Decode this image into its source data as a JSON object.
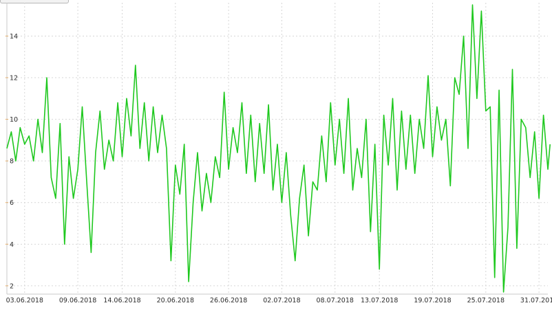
{
  "chart_data": {
    "type": "line",
    "title": "",
    "xlabel": "",
    "ylabel": "",
    "grid": true,
    "xlim": [
      "2018-06-01",
      "2018-08-01"
    ],
    "ylim": [
      1.6,
      15.6
    ],
    "y_ticks": [
      2,
      4,
      6,
      8,
      10,
      12,
      14
    ],
    "x_ticks": [
      "03.06.2018",
      "09.06.2018",
      "14.06.2018",
      "20.06.2018",
      "26.06.2018",
      "02.07.2018",
      "08.07.2018",
      "13.07.2018",
      "19.07.2018",
      "25.07.2018",
      "31.07.2018"
    ],
    "series": [
      {
        "color": "#1ec81e",
        "points": [
          [
            "2018-06-01",
            8.6
          ],
          [
            "2018-06-01T12:00",
            9.4
          ],
          [
            "2018-06-02",
            8.0
          ],
          [
            "2018-06-02T12:00",
            9.6
          ],
          [
            "2018-06-03",
            8.8
          ],
          [
            "2018-06-03T12:00",
            9.2
          ],
          [
            "2018-06-04",
            8.0
          ],
          [
            "2018-06-04T12:00",
            10.0
          ],
          [
            "2018-06-05",
            8.4
          ],
          [
            "2018-06-05T12:00",
            12.0
          ],
          [
            "2018-06-06",
            7.2
          ],
          [
            "2018-06-06T12:00",
            6.2
          ],
          [
            "2018-06-07",
            9.8
          ],
          [
            "2018-06-07T12:00",
            4.0
          ],
          [
            "2018-06-08",
            8.2
          ],
          [
            "2018-06-08T12:00",
            6.2
          ],
          [
            "2018-06-09",
            7.6
          ],
          [
            "2018-06-09T12:00",
            10.6
          ],
          [
            "2018-06-10",
            7.0
          ],
          [
            "2018-06-10T12:00",
            3.6
          ],
          [
            "2018-06-11",
            8.4
          ],
          [
            "2018-06-11T12:00",
            10.4
          ],
          [
            "2018-06-12",
            7.6
          ],
          [
            "2018-06-12T12:00",
            9.0
          ],
          [
            "2018-06-13",
            8.0
          ],
          [
            "2018-06-13T12:00",
            10.8
          ],
          [
            "2018-06-14",
            8.2
          ],
          [
            "2018-06-14T12:00",
            11.0
          ],
          [
            "2018-06-15",
            9.2
          ],
          [
            "2018-06-15T12:00",
            12.6
          ],
          [
            "2018-06-16",
            8.6
          ],
          [
            "2018-06-16T12:00",
            10.8
          ],
          [
            "2018-06-17",
            8.0
          ],
          [
            "2018-06-17T12:00",
            10.6
          ],
          [
            "2018-06-18",
            8.4
          ],
          [
            "2018-06-18T12:00",
            10.2
          ],
          [
            "2018-06-19",
            8.6
          ],
          [
            "2018-06-19T12:00",
            3.2
          ],
          [
            "2018-06-20",
            7.8
          ],
          [
            "2018-06-20T12:00",
            6.4
          ],
          [
            "2018-06-21",
            8.8
          ],
          [
            "2018-06-21T12:00",
            2.2
          ],
          [
            "2018-06-22",
            6.0
          ],
          [
            "2018-06-22T12:00",
            8.4
          ],
          [
            "2018-06-23",
            5.6
          ],
          [
            "2018-06-23T12:00",
            7.4
          ],
          [
            "2018-06-24",
            6.0
          ],
          [
            "2018-06-24T12:00",
            8.2
          ],
          [
            "2018-06-25",
            7.2
          ],
          [
            "2018-06-25T12:00",
            11.3
          ],
          [
            "2018-06-26",
            7.6
          ],
          [
            "2018-06-26T12:00",
            9.6
          ],
          [
            "2018-06-27",
            8.4
          ],
          [
            "2018-06-27T12:00",
            10.8
          ],
          [
            "2018-06-28",
            7.4
          ],
          [
            "2018-06-28T12:00",
            10.2
          ],
          [
            "2018-06-29",
            7.0
          ],
          [
            "2018-06-29T12:00",
            9.8
          ],
          [
            "2018-06-30",
            7.4
          ],
          [
            "2018-06-30T12:00",
            10.7
          ],
          [
            "2018-07-01",
            6.6
          ],
          [
            "2018-07-01T12:00",
            8.8
          ],
          [
            "2018-07-02",
            6.0
          ],
          [
            "2018-07-02T12:00",
            8.4
          ],
          [
            "2018-07-03",
            5.4
          ],
          [
            "2018-07-03T12:00",
            3.2
          ],
          [
            "2018-07-04",
            6.2
          ],
          [
            "2018-07-04T12:00",
            7.8
          ],
          [
            "2018-07-05",
            4.4
          ],
          [
            "2018-07-05T12:00",
            7.0
          ],
          [
            "2018-07-06",
            6.6
          ],
          [
            "2018-07-06T12:00",
            9.2
          ],
          [
            "2018-07-07",
            7.0
          ],
          [
            "2018-07-07T12:00",
            10.8
          ],
          [
            "2018-07-08",
            7.8
          ],
          [
            "2018-07-08T12:00",
            10.0
          ],
          [
            "2018-07-09",
            7.4
          ],
          [
            "2018-07-09T12:00",
            11.0
          ],
          [
            "2018-07-10",
            6.6
          ],
          [
            "2018-07-10T12:00",
            8.6
          ],
          [
            "2018-07-11",
            7.2
          ],
          [
            "2018-07-11T12:00",
            10.0
          ],
          [
            "2018-07-12",
            4.6
          ],
          [
            "2018-07-12T12:00",
            8.8
          ],
          [
            "2018-07-13",
            2.8
          ],
          [
            "2018-07-13T12:00",
            10.2
          ],
          [
            "2018-07-14",
            7.8
          ],
          [
            "2018-07-14T12:00",
            11.0
          ],
          [
            "2018-07-15",
            6.6
          ],
          [
            "2018-07-15T12:00",
            10.4
          ],
          [
            "2018-07-16",
            7.6
          ],
          [
            "2018-07-16T12:00",
            10.2
          ],
          [
            "2018-07-17",
            7.4
          ],
          [
            "2018-07-17T12:00",
            10.0
          ],
          [
            "2018-07-18",
            8.6
          ],
          [
            "2018-07-18T12:00",
            12.1
          ],
          [
            "2018-07-19",
            8.2
          ],
          [
            "2018-07-19T12:00",
            10.6
          ],
          [
            "2018-07-20",
            9.0
          ],
          [
            "2018-07-20T12:00",
            10.0
          ],
          [
            "2018-07-21",
            6.8
          ],
          [
            "2018-07-21T12:00",
            12.0
          ],
          [
            "2018-07-22",
            11.2
          ],
          [
            "2018-07-22T12:00",
            14.0
          ],
          [
            "2018-07-23",
            8.6
          ],
          [
            "2018-07-23T12:00",
            15.5
          ],
          [
            "2018-07-24",
            11.0
          ],
          [
            "2018-07-24T12:00",
            15.2
          ],
          [
            "2018-07-25",
            10.4
          ],
          [
            "2018-07-25T12:00",
            10.6
          ],
          [
            "2018-07-26",
            2.4
          ],
          [
            "2018-07-26T12:00",
            11.4
          ],
          [
            "2018-07-27",
            1.7
          ],
          [
            "2018-07-27T12:00",
            4.8
          ],
          [
            "2018-07-28",
            12.4
          ],
          [
            "2018-07-28T12:00",
            3.8
          ],
          [
            "2018-07-29",
            10.0
          ],
          [
            "2018-07-29T12:00",
            9.6
          ],
          [
            "2018-07-30",
            7.2
          ],
          [
            "2018-07-30T12:00",
            9.4
          ],
          [
            "2018-07-31",
            6.2
          ],
          [
            "2018-07-31T12:00",
            10.2
          ],
          [
            "2018-08-01",
            7.6
          ],
          [
            "2018-08-01T06:00",
            8.8
          ]
        ]
      }
    ]
  }
}
